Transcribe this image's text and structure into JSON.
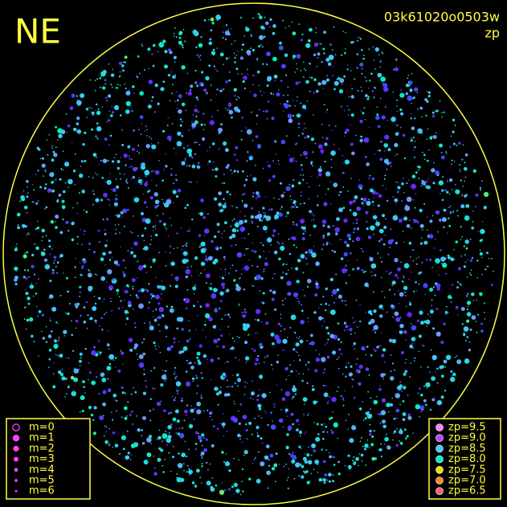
{
  "header": {
    "direction": "NE",
    "image_id": "03k61020o0503w",
    "color_key": "zp"
  },
  "magnitude_legend": {
    "items": [
      {
        "label": "m=0"
      },
      {
        "label": "m=1"
      },
      {
        "label": "m=2"
      },
      {
        "label": "m=3"
      },
      {
        "label": "m=4"
      },
      {
        "label": "m=5"
      },
      {
        "label": "m=6"
      }
    ]
  },
  "zp_legend": {
    "items": [
      {
        "label": "zp=9.5",
        "color": "#ff80ff"
      },
      {
        "label": "zp=9.0",
        "color": "#c040ff"
      },
      {
        "label": "zp=8.5",
        "color": "#40c8ff"
      },
      {
        "label": "zp=8.0",
        "color": "#00f0c0"
      },
      {
        "label": "zp=7.5",
        "color": "#f0e000"
      },
      {
        "label": "zp=7.0",
        "color": "#ff8a20"
      },
      {
        "label": "zp=6.5",
        "color": "#ff6070"
      }
    ]
  }
}
